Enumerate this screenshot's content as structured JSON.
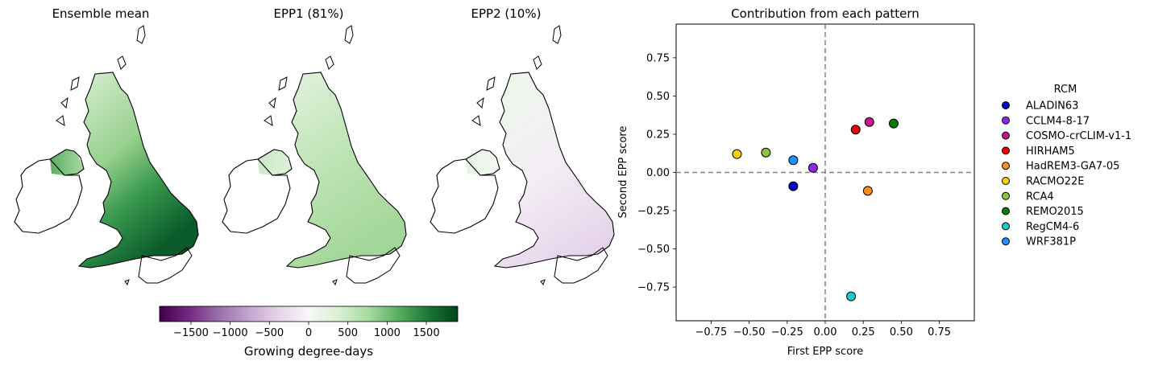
{
  "map_panels": [
    {
      "title": "Ensemble mean",
      "style": "mean"
    },
    {
      "title": "EPP1 (81%)",
      "style": "epp1"
    },
    {
      "title": "EPP2 (10%)",
      "style": "epp2"
    }
  ],
  "colorbar": {
    "label": "Growing degree-days",
    "range": [
      -1900,
      1900
    ],
    "ticks": [
      -1500,
      -1000,
      -500,
      0,
      500,
      1000,
      1500
    ],
    "tick_labels": [
      "−1500",
      "−1000",
      "−500",
      "0",
      "500",
      "1000",
      "1500"
    ],
    "colormap": [
      "#40004b",
      "#762a83",
      "#9970ab",
      "#c2a5cf",
      "#e7d4e8",
      "#f7f7f7",
      "#d9f0d3",
      "#a6dba0",
      "#5aae61",
      "#1b7837",
      "#00441b"
    ]
  },
  "chart_data": {
    "type": "scatter",
    "title": "Contribution from each pattern",
    "xlabel": "First EPP score",
    "ylabel": "Second EPP score",
    "xlim": [
      -0.98,
      0.98
    ],
    "ylim": [
      -0.97,
      0.97
    ],
    "xticks": [
      -0.75,
      -0.5,
      -0.25,
      0.0,
      0.25,
      0.5,
      0.75
    ],
    "xtick_labels": [
      "−0.75",
      "−0.50",
      "−0.25",
      "0.00",
      "0.25",
      "0.50",
      "0.75"
    ],
    "yticks": [
      -0.75,
      -0.5,
      -0.25,
      0.0,
      0.25,
      0.5,
      0.75
    ],
    "ytick_labels": [
      "−0.75",
      "−0.50",
      "−0.25",
      "0.00",
      "0.25",
      "0.50",
      "0.75"
    ],
    "reference_lines": {
      "x": 0,
      "y": 0,
      "style": "dashed",
      "color": "#808080"
    },
    "legend": {
      "title": "RCM",
      "placement": "outside-right"
    },
    "grid": false,
    "points": [
      {
        "name": "ALADIN63",
        "x": -0.21,
        "y": -0.09,
        "color": "#0000cd"
      },
      {
        "name": "CCLM4-8-17",
        "x": -0.08,
        "y": 0.03,
        "color": "#8a2be2"
      },
      {
        "name": "COSMO-crCLIM-v1-1",
        "x": 0.29,
        "y": 0.33,
        "color": "#c71585"
      },
      {
        "name": "HIRHAM5",
        "x": 0.2,
        "y": 0.28,
        "color": "#ee0000"
      },
      {
        "name": "HadREM3-GA7-05",
        "x": 0.28,
        "y": -0.12,
        "color": "#ff8c1a"
      },
      {
        "name": "RACMO22E",
        "x": -0.58,
        "y": 0.12,
        "color": "#ffd000"
      },
      {
        "name": "RCA4",
        "x": -0.39,
        "y": 0.13,
        "color": "#8cc43a"
      },
      {
        "name": "REMO2015",
        "x": 0.45,
        "y": 0.32,
        "color": "#008000"
      },
      {
        "name": "RegCM4-6",
        "x": 0.17,
        "y": -0.81,
        "color": "#20c8c8"
      },
      {
        "name": "WRF381P",
        "x": -0.21,
        "y": 0.08,
        "color": "#1e90ff"
      }
    ]
  }
}
